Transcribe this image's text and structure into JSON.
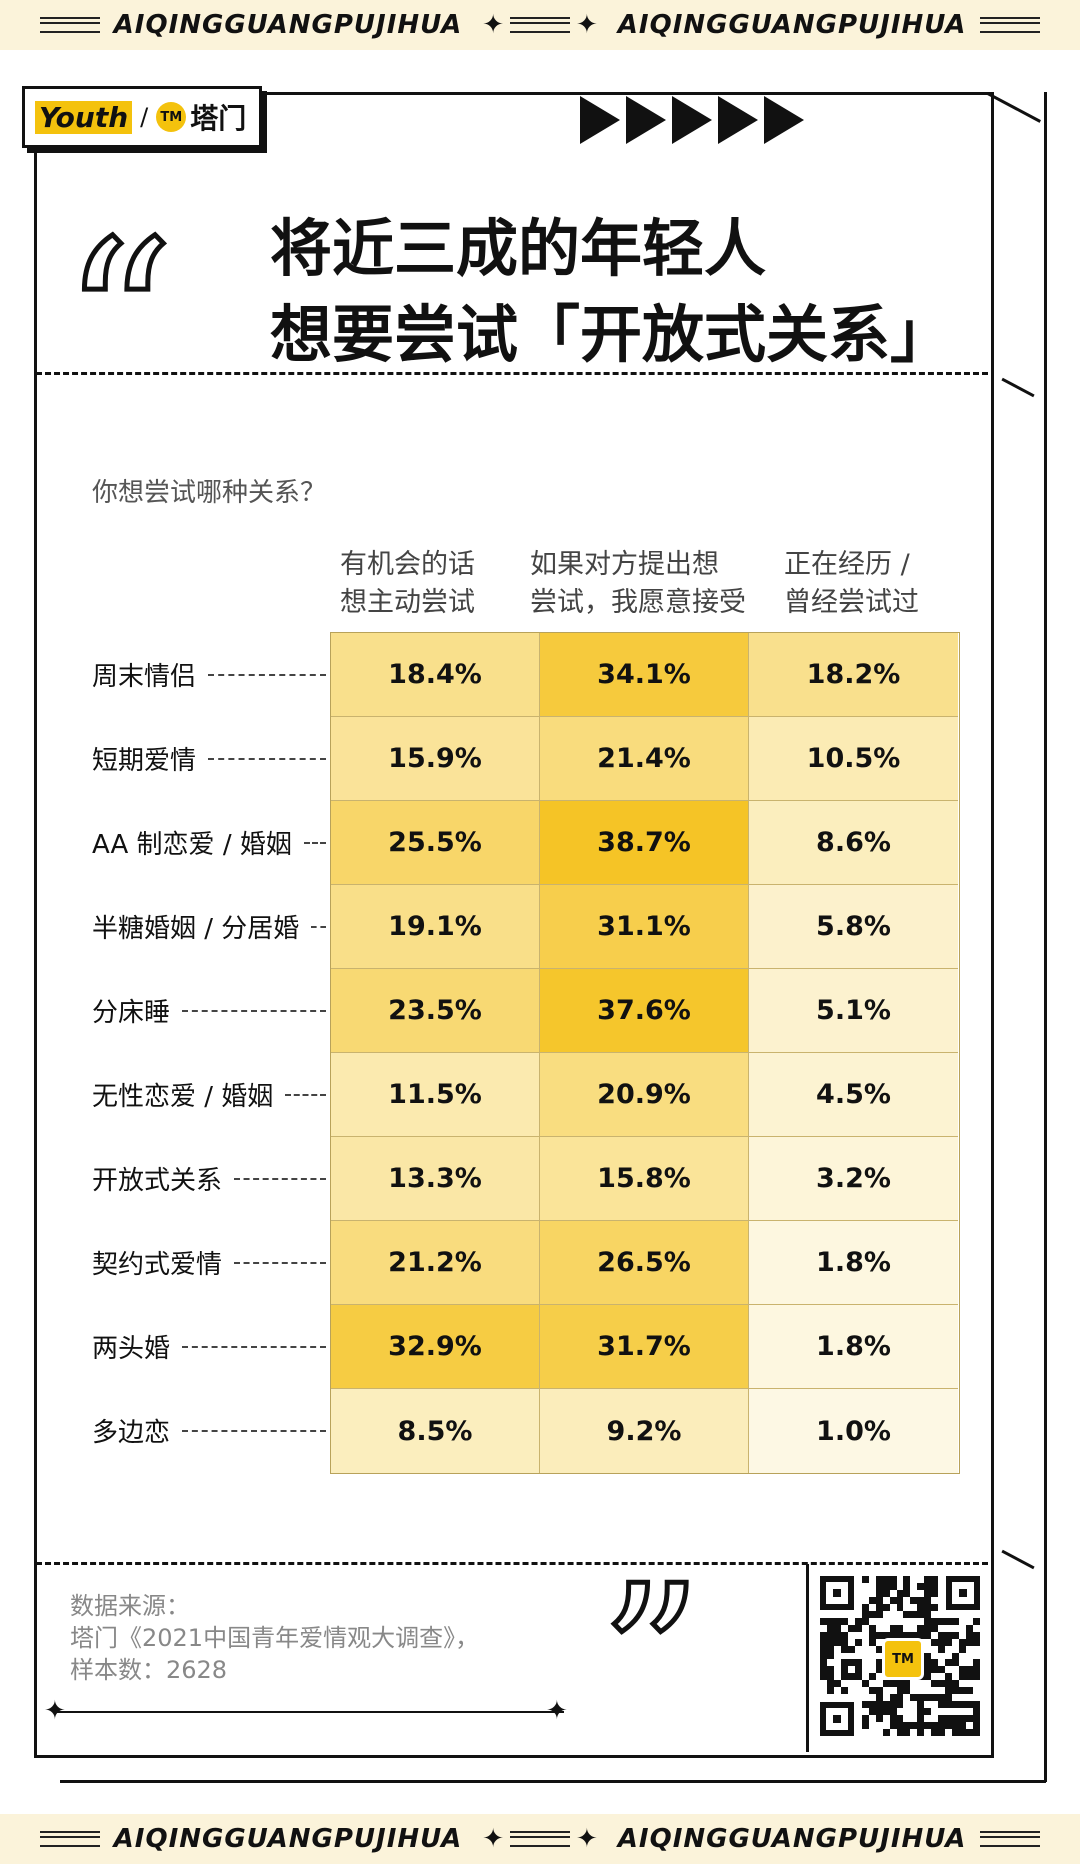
{
  "banner": {
    "text": "AIQINGGUANGPUJIHUA"
  },
  "logo": {
    "youth": "Youth",
    "separator": "/",
    "mark": "TM",
    "brand": "塔门"
  },
  "title": {
    "line1": "将近三成的年轻人",
    "line2": "想要尝试「开放式关系」"
  },
  "question": "你想尝试哪种关系？",
  "chart_data": {
    "type": "heatmap",
    "columns": [
      {
        "line1": "有机会的话",
        "line2": "想主动尝试"
      },
      {
        "line1": "如果对方提出想",
        "line2": "尝试，我愿意接受"
      },
      {
        "line1": "正在经历 /",
        "line2": "曾经尝试过"
      }
    ],
    "rows": [
      "周末情侣",
      "短期爱情",
      "AA 制恋爱 / 婚姻",
      "半糖婚姻 / 分居婚",
      "分床睡",
      "无性恋爱 / 婚姻",
      "开放式关系",
      "契约式爱情",
      "两头婚",
      "多边恋"
    ],
    "values": [
      [
        18.4,
        34.1,
        18.2
      ],
      [
        15.9,
        21.4,
        10.5
      ],
      [
        25.5,
        38.7,
        8.6
      ],
      [
        19.1,
        31.1,
        5.8
      ],
      [
        23.5,
        37.6,
        5.1
      ],
      [
        11.5,
        20.9,
        4.5
      ],
      [
        13.3,
        15.8,
        3.2
      ],
      [
        21.2,
        26.5,
        1.8
      ],
      [
        32.9,
        31.7,
        1.8
      ],
      [
        8.5,
        9.2,
        1.0
      ]
    ],
    "labels": [
      [
        "18.4%",
        "34.1%",
        "18.2%"
      ],
      [
        "15.9%",
        "21.4%",
        "10.5%"
      ],
      [
        "25.5%",
        "38.7%",
        "8.6%"
      ],
      [
        "19.1%",
        "31.1%",
        "5.8%"
      ],
      [
        "23.5%",
        "37.6%",
        "5.1%"
      ],
      [
        "11.5%",
        "20.9%",
        "4.5%"
      ],
      [
        "13.3%",
        "15.8%",
        "3.2%"
      ],
      [
        "21.2%",
        "26.5%",
        "1.8%"
      ],
      [
        "32.9%",
        "31.7%",
        "1.8%"
      ],
      [
        "8.5%",
        "9.2%",
        "1.0%"
      ]
    ],
    "value_range": [
      1.0,
      38.7
    ],
    "color_low": "#fdf8e4",
    "color_high": "#f5c426"
  },
  "source": {
    "line1": "数据来源：",
    "line2": "塔门《2021中国青年爱情观大调查》，",
    "line3": "样本数：2628"
  },
  "qr": {
    "logo": "TM"
  }
}
